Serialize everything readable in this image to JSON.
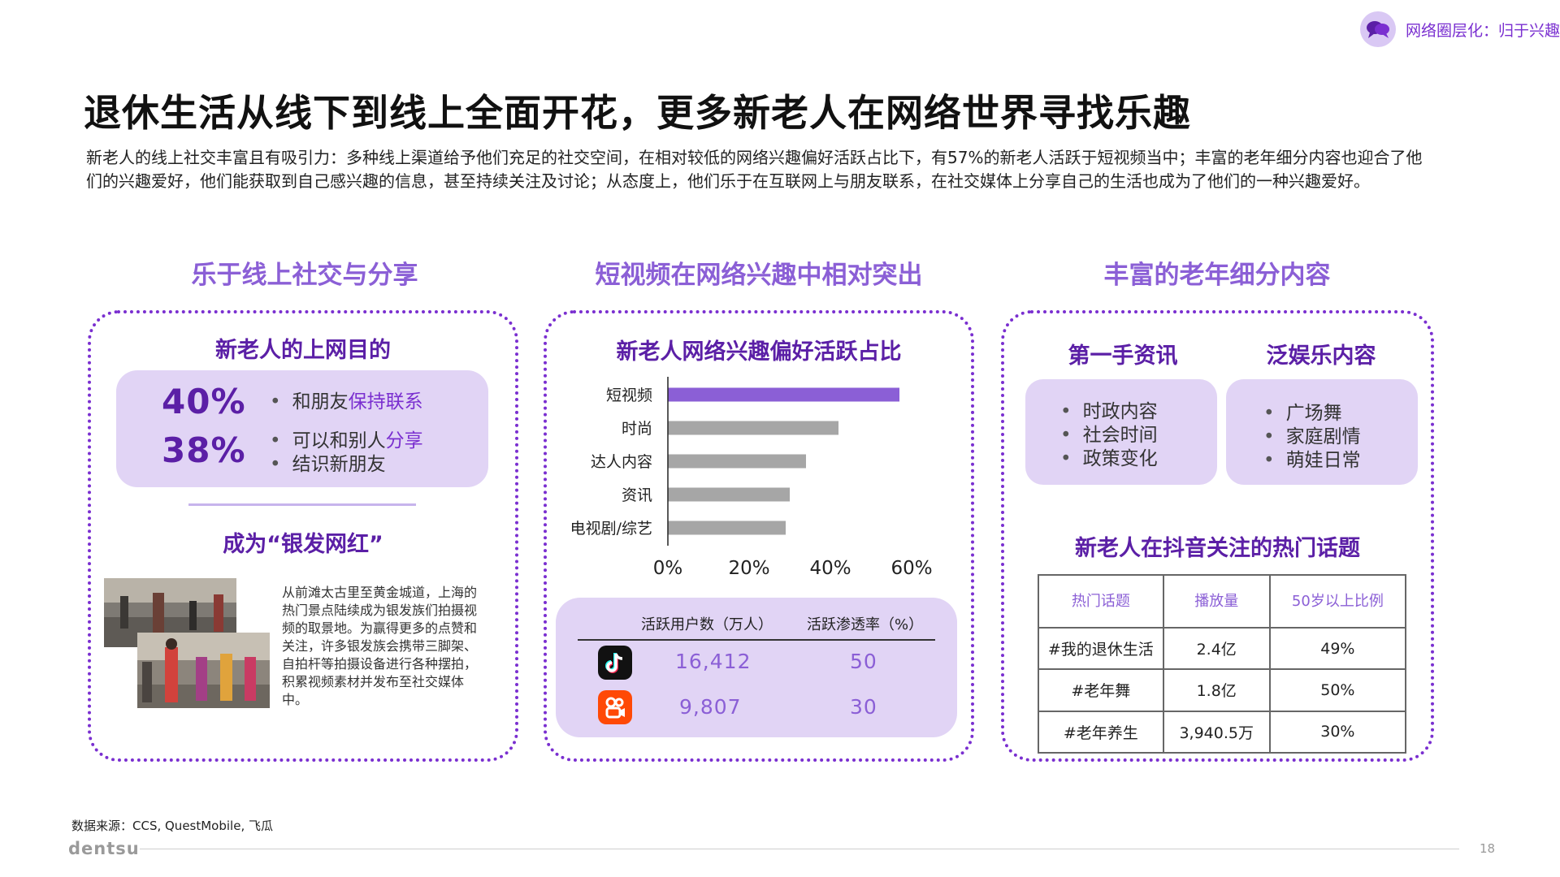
{
  "header": {
    "tag_icon": "chat-bubbles-icon",
    "tag_text": "网络圈层化：归于兴趣"
  },
  "title": "退休生活从线下到线上全面开花，更多新老人在网络世界寻找乐趣",
  "intro": "新老人的线上社交丰富且有吸引力：多种线上渠道给予他们充足的社交空间，在相对较低的网络兴趣偏好活跃占比下，有57%的新老人活跃于短视频当中；丰富的老年细分内容也迎合了他们的兴趣爱好，他们能获取到自己感兴趣的信息，甚至持续关注及讨论；从态度上，他们乐于在互联网上与朋友联系，在社交媒体上分享自己的生活也成为了他们的一种兴趣爱好。",
  "sections": {
    "left": "乐于线上社交与分享",
    "middle": "短视频在网络兴趣中相对突出",
    "right": "丰富的老年细分内容"
  },
  "left_panel": {
    "heading": "新老人的上网目的",
    "stat1": {
      "pct": "40%",
      "item_pre": "和朋友",
      "item_hl": "保持联系"
    },
    "stat2": {
      "pct": "38%",
      "item1_pre": "可以和别人",
      "item1_hl": "分享",
      "item2": "结识新朋友"
    },
    "heading2": "成为“银发网红”",
    "photo_text": "从前滩太古里至黄金城道，上海的热门景点陆续成为银发族们拍摄视频的取景地。为赢得更多的点赞和关注，许多银发族会携带三脚架、自拍杆等拍摄设备进行各种摆拍，积累视频素材并发布至社交媒体中。"
  },
  "chart_data": {
    "type": "bar",
    "orientation": "horizontal",
    "title": "新老人网络兴趣偏好活跃占比",
    "categories": [
      "短视频",
      "时尚",
      "达人内容",
      "资讯",
      "电视剧/综艺"
    ],
    "values": [
      57,
      42,
      34,
      30,
      29
    ],
    "xlim": [
      0,
      60
    ],
    "ticks": [
      "0%",
      "20%",
      "40%",
      "60%"
    ],
    "highlight_color": "#8b5fd6",
    "bar_color": "#a6a6a6"
  },
  "platform_stats": {
    "headers": [
      "活跃用户数（万人）",
      "活跃渗透率（%）"
    ],
    "rows": [
      {
        "icon": "tiktok-icon",
        "users": "16,412",
        "rate": "50"
      },
      {
        "icon": "kuaishou-icon",
        "users": "9,807",
        "rate": "30"
      }
    ]
  },
  "right_panel": {
    "col1": {
      "heading": "第一手资讯",
      "items": [
        "时政内容",
        "社会时间",
        "政策变化"
      ]
    },
    "col2": {
      "heading": "泛娱乐内容",
      "items": [
        "广场舞",
        "家庭剧情",
        "萌娃日常"
      ]
    },
    "table_heading": "新老人在抖音关注的热门话题",
    "table": {
      "headers": [
        "热门话题",
        "播放量",
        "50岁以上比例"
      ],
      "rows": [
        [
          "#我的退休生活",
          "2.4亿",
          "49%"
        ],
        [
          "#老年舞",
          "1.8亿",
          "50%"
        ],
        [
          "#老年养生",
          "3,940.5万",
          "30%"
        ]
      ]
    }
  },
  "footer": {
    "source": "数据来源：CCS, QuestMobile, 飞瓜",
    "brand": "dentsu",
    "page": "18"
  }
}
